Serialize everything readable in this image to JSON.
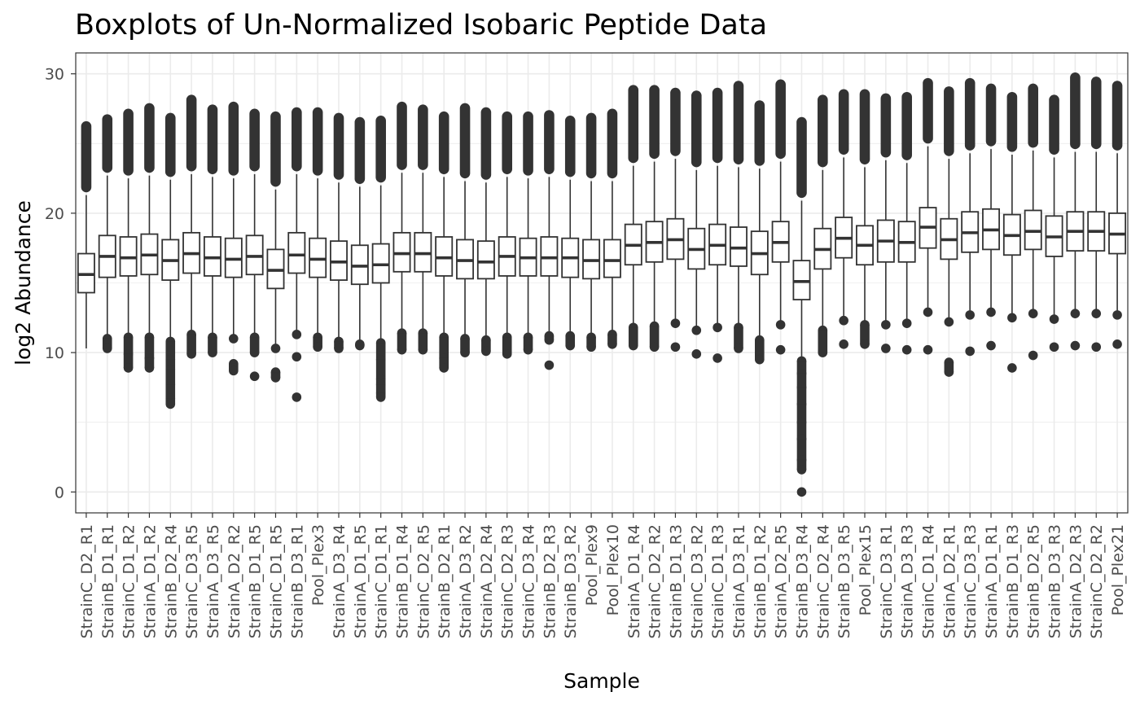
{
  "chart_data": {
    "type": "boxplot",
    "title": "Boxplots of Un-Normalized Isobaric Peptide Data",
    "xlabel": "Sample",
    "ylabel": "log2 Abundance",
    "ylim": [
      -1.5,
      31.5
    ],
    "yticks": [
      0,
      10,
      20,
      30
    ],
    "grid": true,
    "colors": {
      "box": "#333333",
      "grid": "#ebebeb",
      "outlier": "#333333",
      "panel_border": "#333333"
    },
    "samples": [
      {
        "name": "StrainC_D2_R1",
        "q1": 14.3,
        "median": 15.6,
        "q3": 17.1,
        "whisker_low": 10.3,
        "whisker_high": 21.3,
        "outliers_low": [],
        "outliers_high": [
          21.5,
          26.6
        ]
      },
      {
        "name": "StrainB_D1_R1",
        "q1": 15.4,
        "median": 16.9,
        "q3": 18.4,
        "whisker_low": 11.1,
        "whisker_high": 22.7,
        "outliers_low": [
          10.3,
          11.0
        ],
        "outliers_high": [
          22.9,
          27.1
        ]
      },
      {
        "name": "StrainC_D1_R2",
        "q1": 15.5,
        "median": 16.8,
        "q3": 18.3,
        "whisker_low": 11.3,
        "whisker_high": 22.5,
        "outliers_low": [
          8.9,
          9.9,
          11.1
        ],
        "outliers_high": [
          22.7,
          27.5
        ]
      },
      {
        "name": "StrainA_D1_R2",
        "q1": 15.6,
        "median": 17.0,
        "q3": 18.5,
        "whisker_low": 11.3,
        "whisker_high": 22.7,
        "outliers_low": [
          8.9,
          9.6,
          11.1
        ],
        "outliers_high": [
          22.9,
          27.9
        ]
      },
      {
        "name": "StrainB_D2_R4",
        "q1": 15.2,
        "median": 16.6,
        "q3": 18.1,
        "whisker_low": 11.0,
        "whisker_high": 22.4,
        "outliers_low": [
          6.3,
          6.7,
          7.7,
          8.8,
          9.5,
          10.8
        ],
        "outliers_high": [
          22.6,
          27.2
        ]
      },
      {
        "name": "StrainC_D3_R5",
        "q1": 15.7,
        "median": 17.1,
        "q3": 18.6,
        "whisker_low": 11.5,
        "whisker_high": 22.8,
        "outliers_low": [
          9.9,
          11.3
        ],
        "outliers_high": [
          23.0,
          28.5
        ]
      },
      {
        "name": "StrainA_D3_R5",
        "q1": 15.5,
        "median": 16.8,
        "q3": 18.3,
        "whisker_low": 11.3,
        "whisker_high": 22.6,
        "outliers_low": [
          10.0,
          11.1
        ],
        "outliers_high": [
          22.8,
          27.8
        ]
      },
      {
        "name": "StrainA_D2_R2",
        "q1": 15.4,
        "median": 16.7,
        "q3": 18.2,
        "whisker_low": 11.2,
        "whisker_high": 22.5,
        "outliers_low": [
          8.7,
          9.2,
          11.0
        ],
        "outliers_high": [
          22.7,
          28.0
        ]
      },
      {
        "name": "StrainB_D1_R5",
        "q1": 15.6,
        "median": 16.9,
        "q3": 18.4,
        "whisker_low": 11.3,
        "whisker_high": 22.8,
        "outliers_low": [
          8.3,
          10.0,
          11.1
        ],
        "outliers_high": [
          23.0,
          27.5
        ]
      },
      {
        "name": "StrainC_D1_R5",
        "q1": 14.6,
        "median": 15.9,
        "q3": 17.4,
        "whisker_low": 10.5,
        "whisker_high": 21.7,
        "outliers_low": [
          8.2,
          8.6,
          10.3
        ],
        "outliers_high": [
          21.9,
          27.3
        ]
      },
      {
        "name": "StrainB_D3_R1",
        "q1": 15.7,
        "median": 17.0,
        "q3": 18.6,
        "whisker_low": 11.5,
        "whisker_high": 22.8,
        "outliers_low": [
          6.8,
          9.7,
          11.3
        ],
        "outliers_high": [
          23.0,
          27.6
        ]
      },
      {
        "name": "Pool_Plex3",
        "q1": 15.4,
        "median": 16.7,
        "q3": 18.2,
        "whisker_low": 11.3,
        "whisker_high": 22.5,
        "outliers_low": [
          10.4,
          11.1
        ],
        "outliers_high": [
          22.7,
          27.6
        ]
      },
      {
        "name": "StrainA_D3_R4",
        "q1": 15.2,
        "median": 16.5,
        "q3": 18.0,
        "whisker_low": 11.0,
        "whisker_high": 22.2,
        "outliers_low": [
          10.3,
          10.8
        ],
        "outliers_high": [
          22.4,
          27.2
        ]
      },
      {
        "name": "StrainA_D1_R5",
        "q1": 14.9,
        "median": 16.2,
        "q3": 17.7,
        "whisker_low": 10.8,
        "whisker_high": 21.9,
        "outliers_low": [
          10.5,
          10.6
        ],
        "outliers_high": [
          22.1,
          26.9
        ]
      },
      {
        "name": "StrainC_D1_R1",
        "q1": 15.0,
        "median": 16.3,
        "q3": 17.8,
        "whisker_low": 10.9,
        "whisker_high": 22.0,
        "outliers_low": [
          6.8,
          7.1,
          7.7,
          8.1,
          9.5,
          10.7
        ],
        "outliers_high": [
          22.2,
          27.0
        ]
      },
      {
        "name": "StrainB_D1_R4",
        "q1": 15.8,
        "median": 17.1,
        "q3": 18.6,
        "whisker_low": 11.6,
        "whisker_high": 22.9,
        "outliers_low": [
          10.2,
          11.4
        ],
        "outliers_high": [
          23.1,
          28.0
        ]
      },
      {
        "name": "StrainC_D2_R5",
        "q1": 15.8,
        "median": 17.1,
        "q3": 18.6,
        "whisker_low": 11.6,
        "whisker_high": 22.9,
        "outliers_low": [
          10.2,
          11.4
        ],
        "outliers_high": [
          23.1,
          27.8
        ]
      },
      {
        "name": "StrainB_D2_R1",
        "q1": 15.5,
        "median": 16.8,
        "q3": 18.3,
        "whisker_low": 11.3,
        "whisker_high": 22.6,
        "outliers_low": [
          8.9,
          9.6,
          11.1
        ],
        "outliers_high": [
          22.8,
          27.3
        ]
      },
      {
        "name": "StrainA_D3_R2",
        "q1": 15.3,
        "median": 16.6,
        "q3": 18.1,
        "whisker_low": 11.2,
        "whisker_high": 22.3,
        "outliers_low": [
          10.0,
          11.0
        ],
        "outliers_high": [
          22.5,
          27.9
        ]
      },
      {
        "name": "StrainA_D2_R4",
        "q1": 15.3,
        "median": 16.5,
        "q3": 18.0,
        "whisker_low": 11.1,
        "whisker_high": 22.2,
        "outliers_low": [
          10.1,
          10.9
        ],
        "outliers_high": [
          22.4,
          27.6
        ]
      },
      {
        "name": "StrainC_D2_R3",
        "q1": 15.5,
        "median": 16.9,
        "q3": 18.3,
        "whisker_low": 11.3,
        "whisker_high": 22.6,
        "outliers_low": [
          9.9,
          11.1
        ],
        "outliers_high": [
          22.8,
          27.3
        ]
      },
      {
        "name": "StrainC_D3_R4",
        "q1": 15.5,
        "median": 16.8,
        "q3": 18.2,
        "whisker_low": 11.3,
        "whisker_high": 22.5,
        "outliers_low": [
          10.2,
          11.1
        ],
        "outliers_high": [
          22.7,
          27.3
        ]
      },
      {
        "name": "StrainB_D2_R3",
        "q1": 15.5,
        "median": 16.8,
        "q3": 18.3,
        "whisker_low": 11.4,
        "whisker_high": 22.6,
        "outliers_low": [
          9.1,
          10.9,
          11.2
        ],
        "outliers_high": [
          22.8,
          27.4
        ]
      },
      {
        "name": "StrainB_D3_R2",
        "q1": 15.4,
        "median": 16.8,
        "q3": 18.2,
        "whisker_low": 11.4,
        "whisker_high": 22.4,
        "outliers_low": [
          10.5,
          11.2
        ],
        "outliers_high": [
          22.6,
          27.0
        ]
      },
      {
        "name": "Pool_Plex9",
        "q1": 15.3,
        "median": 16.6,
        "q3": 18.1,
        "whisker_low": 11.3,
        "whisker_high": 22.3,
        "outliers_low": [
          10.4,
          11.1
        ],
        "outliers_high": [
          22.5,
          27.2
        ]
      },
      {
        "name": "Pool_Plex10",
        "q1": 15.4,
        "median": 16.6,
        "q3": 18.1,
        "whisker_low": 11.5,
        "whisker_high": 22.3,
        "outliers_low": [
          10.6,
          11.3
        ],
        "outliers_high": [
          22.5,
          27.5
        ]
      },
      {
        "name": "StrainA_D1_R4",
        "q1": 16.3,
        "median": 17.7,
        "q3": 19.2,
        "whisker_low": 12.0,
        "whisker_high": 23.4,
        "outliers_low": [
          10.5,
          11.8
        ],
        "outliers_high": [
          23.6,
          29.2
        ]
      },
      {
        "name": "StrainC_D2_R2",
        "q1": 16.5,
        "median": 17.9,
        "q3": 19.4,
        "whisker_low": 12.1,
        "whisker_high": 23.7,
        "outliers_low": [
          10.4,
          11.9
        ],
        "outliers_high": [
          23.9,
          29.2
        ]
      },
      {
        "name": "StrainB_D1_R3",
        "q1": 16.7,
        "median": 18.1,
        "q3": 19.6,
        "whisker_low": 12.3,
        "whisker_high": 23.9,
        "outliers_low": [
          10.4,
          12.1
        ],
        "outliers_high": [
          24.1,
          29.0
        ]
      },
      {
        "name": "StrainC_D3_R2",
        "q1": 16.0,
        "median": 17.4,
        "q3": 18.9,
        "whisker_low": 11.8,
        "whisker_high": 23.1,
        "outliers_low": [
          9.9,
          11.6
        ],
        "outliers_high": [
          23.3,
          28.8
        ]
      },
      {
        "name": "StrainC_D1_R3",
        "q1": 16.3,
        "median": 17.7,
        "q3": 19.2,
        "whisker_low": 12.0,
        "whisker_high": 23.4,
        "outliers_low": [
          9.6,
          11.8
        ],
        "outliers_high": [
          23.6,
          29.0
        ]
      },
      {
        "name": "StrainA_D3_R1",
        "q1": 16.2,
        "median": 17.5,
        "q3": 19.0,
        "whisker_low": 12.0,
        "whisker_high": 23.3,
        "outliers_low": [
          10.3,
          11.8
        ],
        "outliers_high": [
          23.5,
          29.5
        ]
      },
      {
        "name": "StrainB_D1_R2",
        "q1": 15.6,
        "median": 17.1,
        "q3": 18.7,
        "whisker_low": 11.1,
        "whisker_high": 23.2,
        "outliers_low": [
          9.5,
          10.9
        ],
        "outliers_high": [
          23.4,
          28.1
        ]
      },
      {
        "name": "StrainA_D2_R5",
        "q1": 16.5,
        "median": 17.9,
        "q3": 19.4,
        "whisker_low": 12.2,
        "whisker_high": 23.7,
        "outliers_low": [
          10.2,
          12.0
        ],
        "outliers_high": [
          23.9,
          29.6
        ]
      },
      {
        "name": "StrainB_D3_R4",
        "q1": 13.8,
        "median": 15.1,
        "q3": 16.6,
        "whisker_low": 9.6,
        "whisker_high": 20.9,
        "outliers_low": [
          0.0,
          1.6,
          2.3,
          3.8,
          5.0,
          6.3,
          7.5,
          8.5,
          9.4
        ],
        "outliers_high": [
          21.1,
          26.9
        ]
      },
      {
        "name": "StrainC_D2_R4",
        "q1": 16.0,
        "median": 17.4,
        "q3": 18.9,
        "whisker_low": 11.8,
        "whisker_high": 23.1,
        "outliers_low": [
          10.0,
          11.6
        ],
        "outliers_high": [
          23.3,
          28.5
        ]
      },
      {
        "name": "StrainB_D3_R5",
        "q1": 16.8,
        "median": 18.2,
        "q3": 19.7,
        "whisker_low": 12.5,
        "whisker_high": 24.0,
        "outliers_low": [
          10.6,
          12.3
        ],
        "outliers_high": [
          24.2,
          28.9
        ]
      },
      {
        "name": "Pool_Plex15",
        "q1": 16.3,
        "median": 17.7,
        "q3": 19.1,
        "whisker_low": 12.2,
        "whisker_high": 23.3,
        "outliers_low": [
          10.6,
          12.0
        ],
        "outliers_high": [
          23.5,
          28.9
        ]
      },
      {
        "name": "StrainC_D3_R1",
        "q1": 16.5,
        "median": 18.0,
        "q3": 19.5,
        "whisker_low": 12.2,
        "whisker_high": 23.8,
        "outliers_low": [
          10.3,
          12.0
        ],
        "outliers_high": [
          24.0,
          28.6
        ]
      },
      {
        "name": "StrainA_D3_R3",
        "q1": 16.5,
        "median": 17.9,
        "q3": 19.4,
        "whisker_low": 12.3,
        "whisker_high": 23.6,
        "outliers_low": [
          10.2,
          12.1
        ],
        "outliers_high": [
          23.8,
          28.7
        ]
      },
      {
        "name": "StrainC_D1_R4",
        "q1": 17.5,
        "median": 19.0,
        "q3": 20.4,
        "whisker_low": 13.1,
        "whisker_high": 24.8,
        "outliers_low": [
          10.2,
          12.9
        ],
        "outliers_high": [
          25.0,
          29.7
        ]
      },
      {
        "name": "StrainA_D2_R1",
        "q1": 16.7,
        "median": 18.1,
        "q3": 19.6,
        "whisker_low": 12.4,
        "whisker_high": 23.9,
        "outliers_low": [
          8.6,
          9.3,
          12.2
        ],
        "outliers_high": [
          24.1,
          29.1
        ]
      },
      {
        "name": "StrainC_D3_R3",
        "q1": 17.2,
        "median": 18.6,
        "q3": 20.1,
        "whisker_low": 12.9,
        "whisker_high": 24.3,
        "outliers_low": [
          10.1,
          12.7
        ],
        "outliers_high": [
          24.5,
          29.7
        ]
      },
      {
        "name": "StrainA_D1_R1",
        "q1": 17.4,
        "median": 18.8,
        "q3": 20.3,
        "whisker_low": 13.1,
        "whisker_high": 24.6,
        "outliers_low": [
          10.5,
          12.9
        ],
        "outliers_high": [
          24.8,
          29.3
        ]
      },
      {
        "name": "StrainB_D1_R3",
        "q1": 17.0,
        "median": 18.4,
        "q3": 19.9,
        "whisker_low": 12.7,
        "whisker_high": 24.2,
        "outliers_low": [
          8.9,
          12.5
        ],
        "outliers_high": [
          24.4,
          28.7
        ]
      },
      {
        "name": "StrainB_D2_R5",
        "q1": 17.4,
        "median": 18.7,
        "q3": 20.2,
        "whisker_low": 13.0,
        "whisker_high": 24.5,
        "outliers_low": [
          9.8,
          12.8
        ],
        "outliers_high": [
          24.7,
          29.3
        ]
      },
      {
        "name": "StrainB_D3_R3",
        "q1": 16.9,
        "median": 18.3,
        "q3": 19.8,
        "whisker_low": 12.6,
        "whisker_high": 24.0,
        "outliers_low": [
          10.4,
          12.4
        ],
        "outliers_high": [
          24.2,
          28.5
        ]
      },
      {
        "name": "StrainA_D2_R3",
        "q1": 17.3,
        "median": 18.7,
        "q3": 20.1,
        "whisker_low": 13.0,
        "whisker_high": 24.4,
        "outliers_low": [
          10.5,
          12.8
        ],
        "outliers_high": [
          24.6,
          30.1
        ]
      },
      {
        "name": "StrainC_D2_R2",
        "q1": 17.3,
        "median": 18.7,
        "q3": 20.1,
        "whisker_low": 13.0,
        "whisker_high": 24.4,
        "outliers_low": [
          10.4,
          12.8
        ],
        "outliers_high": [
          24.6,
          29.8
        ]
      },
      {
        "name": "Pool_Plex21",
        "q1": 17.1,
        "median": 18.5,
        "q3": 20.0,
        "whisker_low": 12.9,
        "whisker_high": 24.3,
        "outliers_low": [
          10.6,
          12.7
        ],
        "outliers_high": [
          24.5,
          29.5
        ]
      }
    ]
  }
}
